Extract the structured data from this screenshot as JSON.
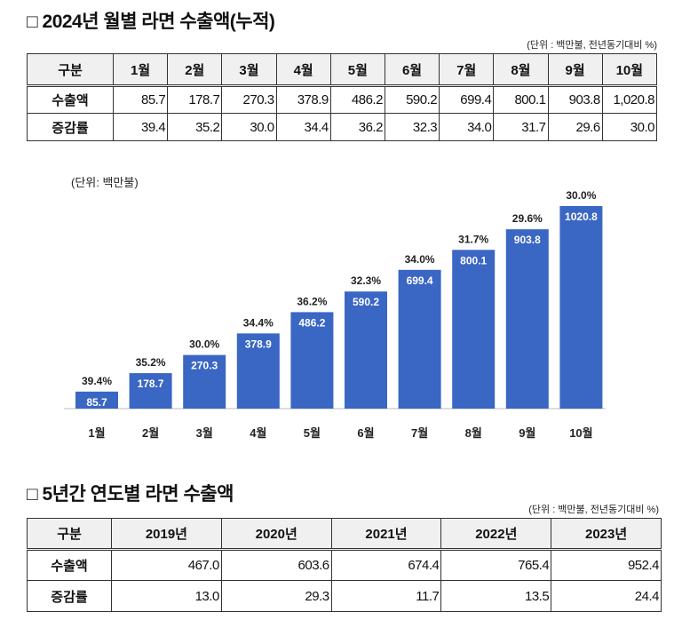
{
  "section1": {
    "title": "□ 2024년 월별 라면 수출액(누적)",
    "unit": "(단위 : 백만불, 전년동기대비 %)",
    "header": [
      "구분",
      "1월",
      "2월",
      "3월",
      "4월",
      "5월",
      "6월",
      "7월",
      "8월",
      "9월",
      "10월"
    ],
    "rows": [
      {
        "label": "수출액",
        "values": [
          "85.7",
          "178.7",
          "270.3",
          "378.9",
          "486.2",
          "590.2",
          "699.4",
          "800.1",
          "903.8",
          "1,020.8"
        ]
      },
      {
        "label": "증감률",
        "values": [
          "39.4",
          "35.2",
          "30.0",
          "34.4",
          "36.2",
          "32.3",
          "34.0",
          "31.7",
          "29.6",
          "30.0"
        ]
      }
    ]
  },
  "chart_data": {
    "type": "bar",
    "unit_label": "(단위: 백만불)",
    "categories": [
      "1월",
      "2월",
      "3월",
      "4월",
      "5월",
      "6월",
      "7월",
      "8월",
      "9월",
      "10월"
    ],
    "values": [
      85.7,
      178.7,
      270.3,
      378.9,
      486.2,
      590.2,
      699.4,
      800.1,
      903.8,
      1020.8
    ],
    "value_labels": [
      "85.7",
      "178.7",
      "270.3",
      "378.9",
      "486.2",
      "590.2",
      "699.4",
      "800.1",
      "903.8",
      "1020.8"
    ],
    "growth_labels": [
      "39.4%",
      "35.2%",
      "30.0%",
      "34.4%",
      "36.2%",
      "32.3%",
      "34.0%",
      "31.7%",
      "29.6%",
      "30.0%"
    ],
    "ylim": [
      0,
      1020.8
    ],
    "bar_color": "#3a66c4"
  },
  "section2": {
    "title": "□ 5년간 연도별 라면 수출액",
    "unit": "(단위 : 백만불, 전년동기대비 %)",
    "header": [
      "구분",
      "2019년",
      "2020년",
      "2021년",
      "2022년",
      "2023년"
    ],
    "rows": [
      {
        "label": "수출액",
        "values": [
          "467.0",
          "603.6",
          "674.4",
          "765.4",
          "952.4"
        ]
      },
      {
        "label": "증감률",
        "values": [
          "13.0",
          "29.3",
          "11.7",
          "13.5",
          "24.4"
        ]
      }
    ]
  }
}
